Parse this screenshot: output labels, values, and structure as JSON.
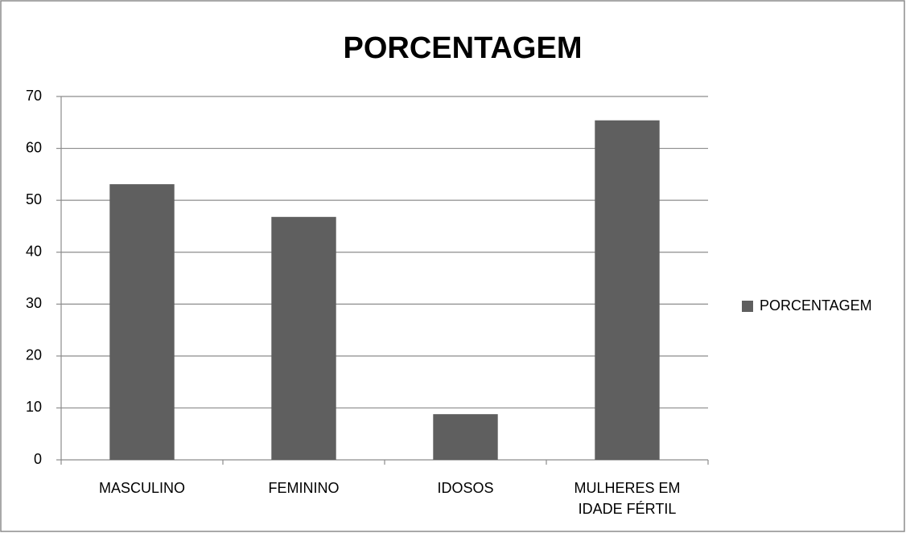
{
  "chart_data": {
    "type": "bar",
    "title": "PORCENTAGEM",
    "categories": [
      "MASCULINO",
      "FEMININO",
      "IDOSOS",
      "MULHERES EM IDADE FÉRTIL"
    ],
    "series": [
      {
        "name": "PORCENTAGEM",
        "color": "#5f5f5f",
        "values": [
          53.1,
          46.8,
          8.8,
          65.4
        ]
      }
    ],
    "ylim": [
      0,
      70
    ],
    "yticks": [
      0,
      10,
      20,
      30,
      40,
      50,
      60,
      70
    ],
    "grid": true,
    "legend": "right"
  }
}
